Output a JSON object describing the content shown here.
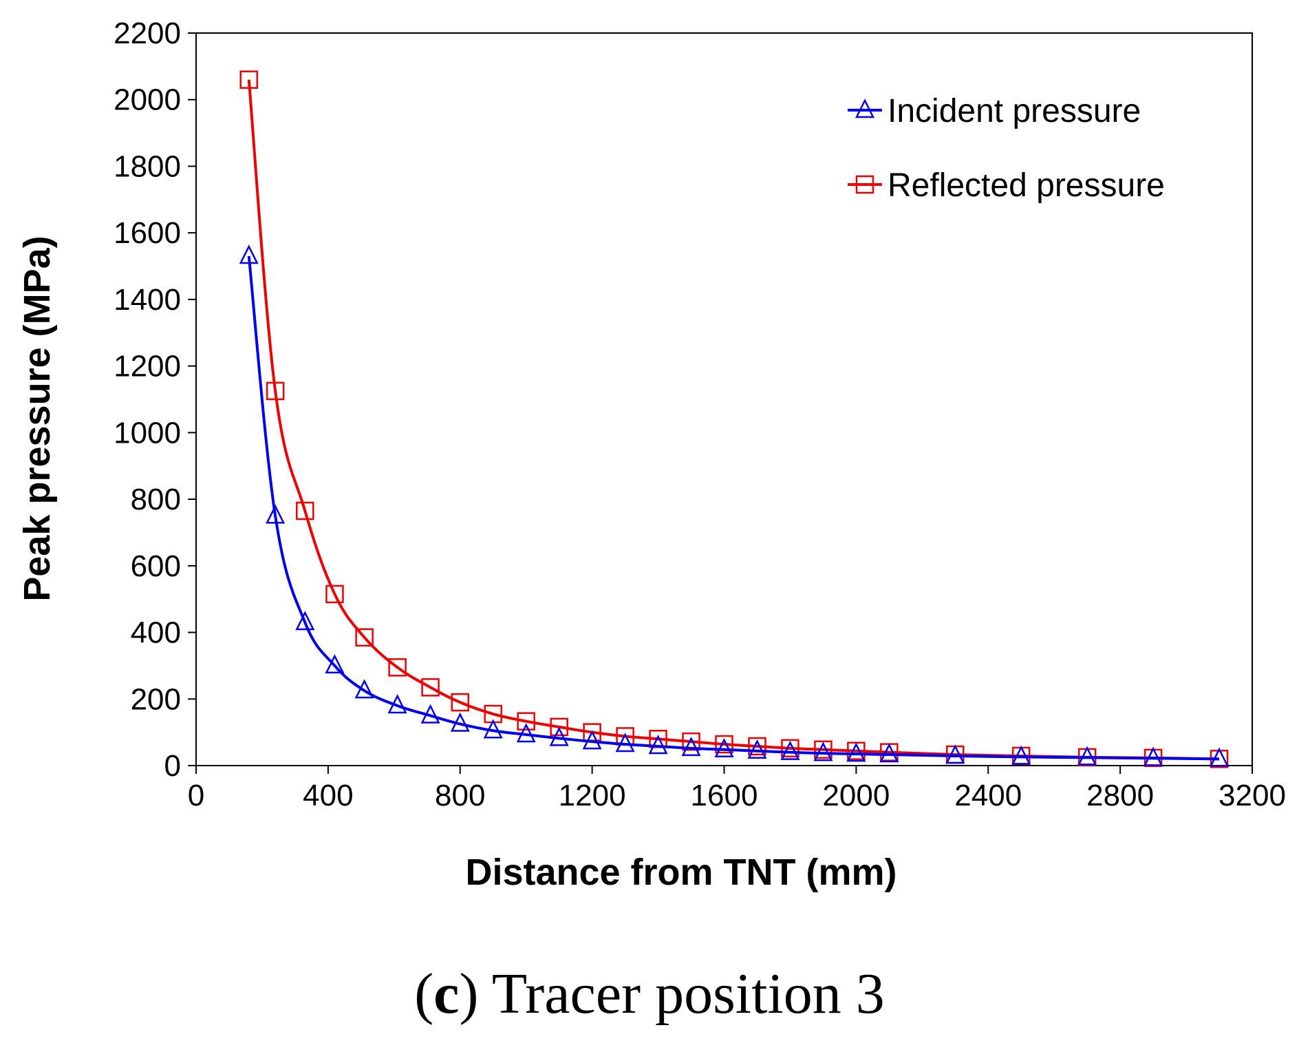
{
  "chart_data": {
    "type": "line",
    "title": "",
    "xlabel": "Distance from TNT (mm)",
    "ylabel": "Peak pressure (MPa)",
    "xlim": [
      0,
      3200
    ],
    "ylim": [
      0,
      2200
    ],
    "xticks": [
      0,
      400,
      800,
      1200,
      1600,
      2000,
      2400,
      2800,
      3200
    ],
    "yticks": [
      0,
      200,
      400,
      600,
      800,
      1000,
      1200,
      1400,
      1600,
      1800,
      2000,
      2200
    ],
    "legend_position": "top-right",
    "series": [
      {
        "name": "Incident pressure",
        "color": "#0000ee",
        "marker": "triangle",
        "x": [
          160,
          240,
          330,
          420,
          510,
          610,
          710,
          800,
          900,
          1000,
          1100,
          1200,
          1300,
          1400,
          1500,
          1600,
          1700,
          1800,
          1900,
          2000,
          2100,
          2300,
          2500,
          2700,
          2900,
          3100
        ],
        "y": [
          1530,
          750,
          430,
          300,
          225,
          180,
          150,
          125,
          105,
          93,
          82,
          72,
          64,
          58,
          52,
          48,
          44,
          40,
          37,
          35,
          33,
          29,
          26,
          24,
          22,
          20
        ]
      },
      {
        "name": "Reflected pressure",
        "color": "#ee0000",
        "marker": "square",
        "x": [
          160,
          240,
          330,
          420,
          510,
          610,
          710,
          800,
          900,
          1000,
          1100,
          1200,
          1300,
          1400,
          1500,
          1600,
          1700,
          1800,
          1900,
          2000,
          2100,
          2300,
          2500,
          2700,
          2900,
          3100
        ],
        "y": [
          2060,
          1125,
          765,
          515,
          385,
          295,
          235,
          190,
          155,
          133,
          116,
          100,
          88,
          80,
          72,
          64,
          58,
          52,
          48,
          44,
          40,
          33,
          29,
          25,
          23,
          20
        ]
      }
    ]
  },
  "caption": {
    "letter": "c",
    "text": " Tracer position 3"
  }
}
